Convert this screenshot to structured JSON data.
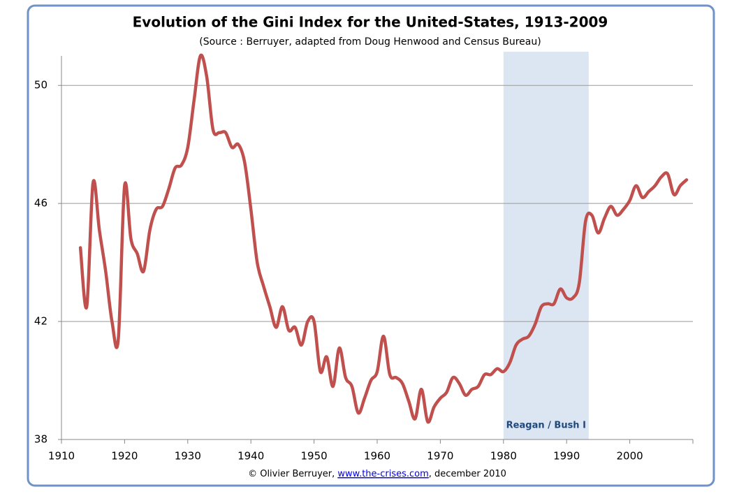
{
  "chart_data": {
    "type": "line",
    "title": "Evolution of the Gini Index for the United-States, 1913-2009",
    "subtitle": "(Source : Berruyer, adapted from Doug Henwood and Census Bureau)",
    "footer_prefix": "© Olivier Berruyer, ",
    "footer_link": "www.the-crises.com",
    "footer_suffix": ", december 2010",
    "x": [
      1913,
      1914,
      1915,
      1916,
      1917,
      1918,
      1919,
      1920,
      1921,
      1922,
      1923,
      1924,
      1925,
      1926,
      1927,
      1928,
      1929,
      1930,
      1931,
      1932,
      1933,
      1934,
      1935,
      1936,
      1937,
      1938,
      1939,
      1940,
      1941,
      1942,
      1943,
      1944,
      1945,
      1946,
      1947,
      1948,
      1949,
      1950,
      1951,
      1952,
      1953,
      1954,
      1955,
      1956,
      1957,
      1958,
      1959,
      1960,
      1961,
      1962,
      1963,
      1964,
      1965,
      1966,
      1967,
      1968,
      1969,
      1970,
      1971,
      1972,
      1973,
      1974,
      1975,
      1976,
      1977,
      1978,
      1979,
      1980,
      1981,
      1982,
      1983,
      1984,
      1985,
      1986,
      1987,
      1988,
      1989,
      1990,
      1991,
      1992,
      1993,
      1994,
      1995,
      1996,
      1997,
      1998,
      1999,
      2000,
      2001,
      2002,
      2003,
      2004,
      2005,
      2006,
      2007,
      2008,
      2009
    ],
    "series": [
      {
        "name": "Gini Index",
        "color": "#c0504d",
        "values": [
          44.5,
          42.5,
          46.7,
          45.1,
          43.7,
          42.0,
          41.4,
          46.6,
          44.8,
          44.3,
          43.7,
          45.1,
          45.8,
          45.9,
          46.5,
          47.2,
          47.3,
          47.9,
          49.5,
          51.0,
          50.3,
          48.5,
          48.4,
          48.4,
          47.9,
          48.0,
          47.4,
          45.8,
          44.0,
          43.2,
          42.5,
          41.8,
          42.5,
          41.7,
          41.8,
          41.2,
          42.0,
          42.0,
          40.3,
          40.8,
          39.8,
          41.1,
          40.1,
          39.8,
          38.9,
          39.4,
          40.0,
          40.3,
          41.5,
          40.2,
          40.1,
          39.9,
          39.3,
          38.7,
          39.7,
          38.6,
          39.1,
          39.4,
          39.6,
          40.1,
          39.9,
          39.5,
          39.7,
          39.8,
          40.2,
          40.2,
          40.4,
          40.3,
          40.6,
          41.2,
          41.4,
          41.5,
          41.9,
          42.5,
          42.6,
          42.6,
          43.1,
          42.8,
          42.8,
          43.3,
          45.4,
          45.6,
          45.0,
          45.5,
          45.9,
          45.6,
          45.8,
          46.1,
          46.6,
          46.2,
          46.4,
          46.6,
          46.9,
          47.0,
          46.3,
          46.6,
          46.8
        ]
      }
    ],
    "shade": {
      "from": 1980,
      "to": 1993.5,
      "label": "Reagan / Bush I",
      "color": "#dce6f2"
    },
    "xlim": [
      1910,
      2010
    ],
    "xticks": [
      1910,
      1920,
      1930,
      1940,
      1950,
      1960,
      1970,
      1980,
      1990,
      2000
    ],
    "ylim": [
      38,
      51
    ],
    "yticks": [
      38,
      42,
      46,
      50
    ],
    "grid": true
  }
}
